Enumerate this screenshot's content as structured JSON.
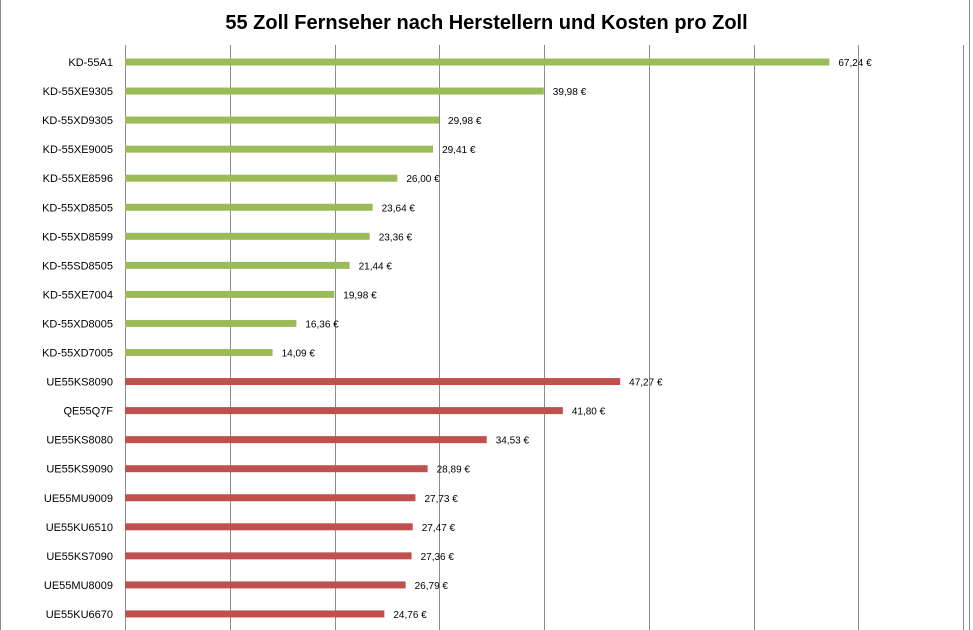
{
  "chart_data": {
    "type": "bar",
    "orientation": "horizontal",
    "title": "55 Zoll Fernseher nach Herstellern und Kosten pro Zoll",
    "xlabel": "",
    "ylabel": "",
    "xlim": [
      0,
      80
    ],
    "grid": true,
    "value_suffix": " €",
    "colors": {
      "series_1": "#9bbb59",
      "series_2": "#c0504d",
      "gridline": "#8c8c8c"
    },
    "categories": [
      "KD-55A1",
      "KD-55XE9305",
      "KD-55XD9305",
      "KD-55XE9005",
      "KD-55XE8596",
      "KD-55XD8505",
      "KD-55XD8599",
      "KD-55SD8505",
      "KD-55XE7004",
      "KD-55XD8005",
      "KD-55XD7005",
      "UE55KS8090",
      "QE55Q7F",
      "UE55KS8080",
      "UE55KS9090",
      "UE55MU9009",
      "UE55KU6510",
      "UE55KS7090",
      "UE55MU8009",
      "UE55KU6670"
    ],
    "values": [
      67.24,
      39.98,
      29.98,
      29.41,
      26.0,
      23.64,
      23.36,
      21.44,
      19.98,
      16.36,
      14.09,
      47.27,
      41.8,
      34.53,
      28.89,
      27.73,
      27.47,
      27.36,
      26.79,
      24.76
    ],
    "value_labels": [
      "67,24 €",
      "39,98 €",
      "29,98 €",
      "29,41 €",
      "26,00 €",
      "23,64 €",
      "23,36 €",
      "21,44 €",
      "19,98 €",
      "16,36 €",
      "14,09 €",
      "47,27 €",
      "41,80 €",
      "34,53 €",
      "28,89 €",
      "27,73 €",
      "27,47 €",
      "27,36 €",
      "26,79 €",
      "24,76 €"
    ],
    "groups": [
      1,
      1,
      1,
      1,
      1,
      1,
      1,
      1,
      1,
      1,
      1,
      2,
      2,
      2,
      2,
      2,
      2,
      2,
      2,
      2
    ]
  }
}
